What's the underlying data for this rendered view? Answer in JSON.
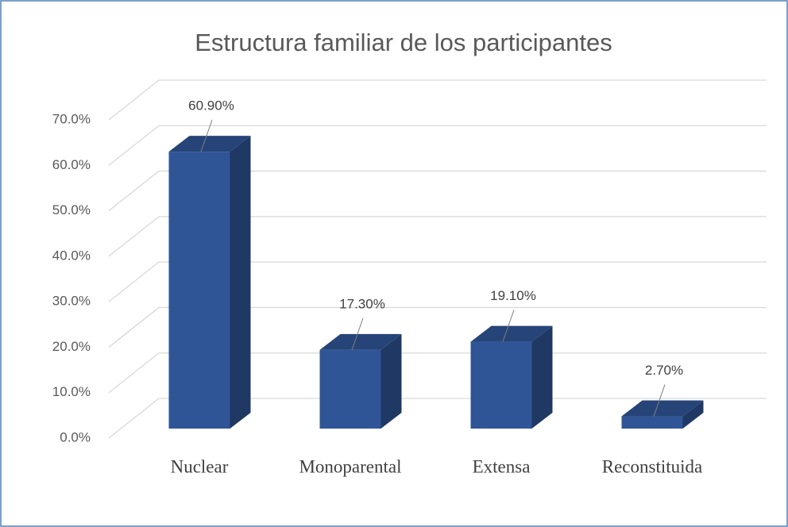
{
  "chart_data": {
    "type": "bar3d",
    "title": "Estructura familiar de los participantes",
    "categories": [
      "Nuclear",
      "Monoparental",
      "Extensa",
      "Reconstituida"
    ],
    "values": [
      60.9,
      17.3,
      19.1,
      2.7
    ],
    "value_labels": [
      "60.90%",
      "17.30%",
      "19.10%",
      "2.70%"
    ],
    "color": "#2f5597",
    "ylim": [
      0,
      70
    ],
    "yticks": [
      {
        "value": 0,
        "label": "0.0%"
      },
      {
        "value": 10,
        "label": "10.0%"
      },
      {
        "value": 20,
        "label": "20.0%"
      },
      {
        "value": 30,
        "label": "30.0%"
      },
      {
        "value": 40,
        "label": "40.0%"
      },
      {
        "value": 50,
        "label": "50.0%"
      },
      {
        "value": 60,
        "label": "60.0%"
      },
      {
        "value": 70,
        "label": "70.0%"
      }
    ],
    "grid": true
  }
}
